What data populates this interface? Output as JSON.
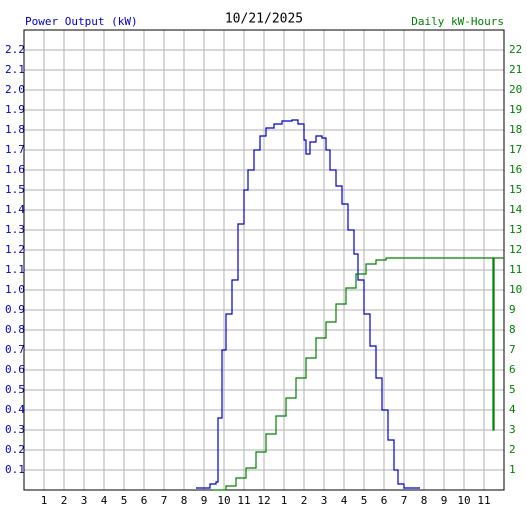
{
  "chart_data": {
    "type": "line",
    "title": "10/21/2025",
    "ylabel": "Power Output (kW)",
    "y2label": "Daily kW-Hours",
    "step": true,
    "grid": true,
    "xlim": [
      0,
      24
    ],
    "xticks": [
      1,
      2,
      3,
      4,
      5,
      6,
      7,
      8,
      9,
      10,
      11,
      12,
      {
        "value": 13,
        "label": "1"
      },
      {
        "value": 14,
        "label": "2"
      },
      {
        "value": 15,
        "label": "3"
      },
      {
        "value": 16,
        "label": "4"
      },
      {
        "value": 17,
        "label": "5"
      },
      {
        "value": 18,
        "label": "6"
      },
      {
        "value": 19,
        "label": "7"
      },
      {
        "value": 20,
        "label": "8"
      },
      {
        "value": 21,
        "label": "9"
      },
      {
        "value": 22,
        "label": "10"
      },
      {
        "value": 23,
        "label": "11"
      }
    ],
    "ylim": [
      0,
      2.3
    ],
    "yticks": [
      0.1,
      0.2,
      0.3,
      0.4,
      0.5,
      0.6,
      0.7,
      0.8,
      0.9,
      {
        "value": 1,
        "label": "1.0"
      },
      1.1,
      1.2,
      1.3,
      1.4,
      1.5,
      1.6,
      1.7,
      1.8,
      1.9,
      {
        "value": 2,
        "label": "2.0"
      },
      2.1,
      2.2
    ],
    "y2lim": [
      0,
      23
    ],
    "y2ticks": [
      1,
      2,
      3,
      4,
      5,
      6,
      7,
      8,
      9,
      10,
      11,
      12,
      13,
      14,
      15,
      16,
      17,
      18,
      19,
      20,
      21,
      22
    ],
    "series": [
      {
        "name": "Power Output (kW)",
        "color": "#0000cc",
        "x": [
          8.6,
          9.3,
          9.6,
          9.7,
          9.9,
          10.1,
          10.4,
          10.7,
          11.0,
          11.2,
          11.5,
          11.8,
          12.1,
          12.5,
          12.9,
          13.4,
          13.7,
          14.0,
          14.1,
          14.3,
          14.6,
          14.9,
          15.1,
          15.3,
          15.6,
          15.9,
          16.2,
          16.5,
          16.7,
          17.0,
          17.3,
          17.6,
          17.9,
          18.2,
          18.5,
          18.7,
          19.0,
          19.8
        ],
        "values": [
          0.01,
          0.03,
          0.04,
          0.36,
          0.7,
          0.88,
          1.05,
          1.33,
          1.5,
          1.6,
          1.7,
          1.77,
          1.81,
          1.83,
          1.845,
          1.85,
          1.83,
          1.75,
          1.68,
          1.74,
          1.77,
          1.76,
          1.7,
          1.6,
          1.52,
          1.43,
          1.3,
          1.18,
          1.05,
          0.88,
          0.72,
          0.56,
          0.4,
          0.25,
          0.1,
          0.03,
          0.01,
          0.01
        ]
      },
      {
        "name": "Daily kW-Hours",
        "color": "#008000",
        "axis": "y2",
        "x": [
          9.4,
          10.1,
          10.6,
          11.1,
          11.6,
          12.1,
          12.6,
          13.1,
          13.6,
          14.1,
          14.6,
          15.1,
          15.6,
          16.1,
          16.6,
          17.1,
          17.6,
          18.1,
          23.4,
          23.45,
          23.5,
          24
        ],
        "values": [
          0,
          0.2,
          0.6,
          1.1,
          1.9,
          2.8,
          3.7,
          4.6,
          5.6,
          6.6,
          7.6,
          8.4,
          9.3,
          10.1,
          10.8,
          11.3,
          11.5,
          11.6,
          11.6,
          3,
          11.6,
          11.6
        ]
      }
    ]
  }
}
